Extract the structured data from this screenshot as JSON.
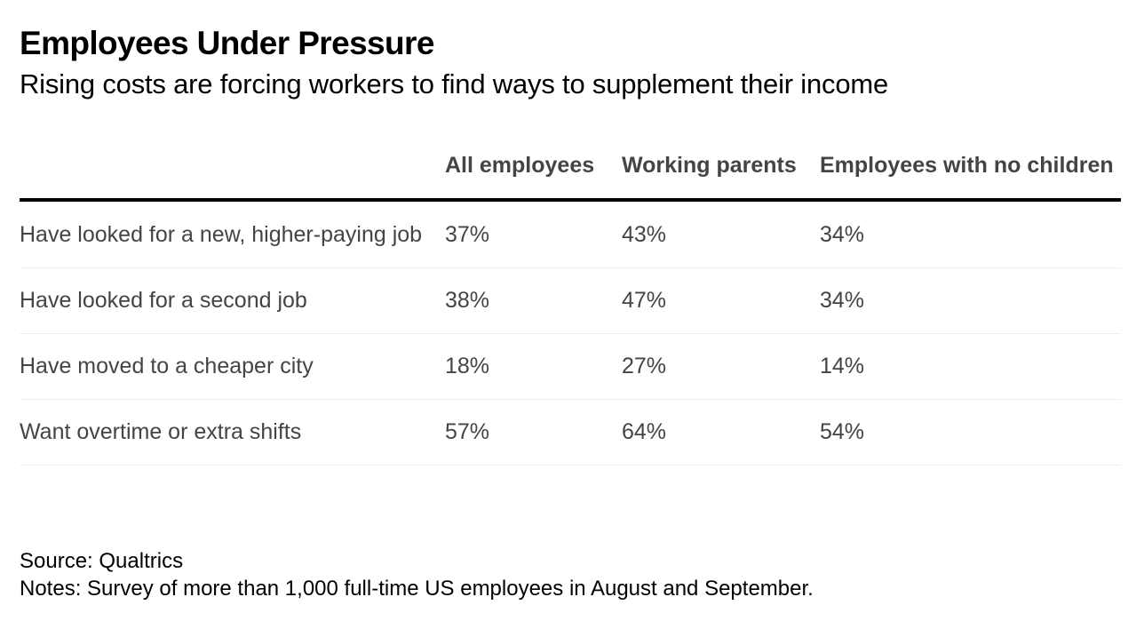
{
  "title": "Employees Under Pressure",
  "subtitle": "Rising costs are forcing workers to find ways to supplement their income",
  "source": "Source: Qualtrics",
  "notes": "Notes: Survey of more than 1,000 full-time US employees in August and September.",
  "chart_data": {
    "type": "table",
    "title": "Employees Under Pressure",
    "subtitle": "Rising costs are forcing workers to find ways to supplement their income",
    "columns": [
      "",
      "All employees",
      "Working parents",
      "Employees with no children"
    ],
    "rows": [
      {
        "label": "Have looked for a new, higher-paying job",
        "values": [
          "37%",
          "43%",
          "34%"
        ]
      },
      {
        "label": "Have looked for a second job",
        "values": [
          "38%",
          "47%",
          "34%"
        ]
      },
      {
        "label": "Have moved to a cheaper city",
        "values": [
          "18%",
          "27%",
          "14%"
        ]
      },
      {
        "label": "Want overtime or extra shifts",
        "values": [
          "57%",
          "64%",
          "54%"
        ]
      }
    ]
  }
}
